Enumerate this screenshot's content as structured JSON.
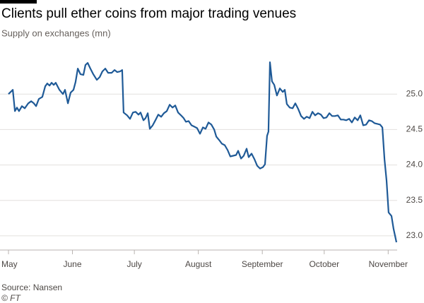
{
  "chart_data": {
    "type": "line",
    "title": "Clients pull ether coins from major trading venues",
    "subtitle": "Supply on exchanges (mn)",
    "source": "Source: Nansen",
    "credit": "© FT",
    "color": "#1f5a97",
    "grid": true,
    "x": [
      0,
      2.1,
      3.1,
      4.1,
      5.1,
      6.5,
      7.9,
      9.6,
      11,
      12.3,
      13.4,
      14.7,
      16.4,
      17.8,
      18.8,
      19.9,
      20.9,
      21.9,
      22.9,
      24.7,
      26.4,
      27.4,
      28.8,
      30.1,
      31.5,
      32.5,
      33.6,
      34.9,
      36.3,
      37.3,
      38.4,
      39.7,
      41.1,
      42.8,
      44.2,
      45.5,
      46.9,
      48.3,
      50,
      51.4,
      52.7,
      54.1,
      55.1,
      55.8,
      57.5,
      58.9,
      60.3,
      61.6,
      63,
      64,
      65.4,
      66.4,
      67.5,
      68.5,
      69.9,
      71.2,
      72.6,
      74,
      75.3,
      76.7,
      78.1,
      79.5,
      80.8,
      82.2,
      83.6,
      84.9,
      86,
      87.3,
      88.7,
      90.1,
      91.4,
      92.8,
      94.2,
      95.5,
      96.9,
      98.3,
      99.7,
      100.7,
      102.1,
      103.4,
      104.8,
      106.2,
      107.5,
      108.9,
      110.3,
      111.3,
      112.7,
      114,
      115.4,
      116.4,
      117.8,
      119.2,
      120.5,
      121.9,
      123.3,
      124.3,
      125.3,
      126,
      126.7,
      127.7,
      128.8,
      130.1,
      131.5,
      132.9,
      133.9,
      134.9,
      136.3,
      137.7,
      139,
      140.4,
      141.8,
      143.2,
      144.5,
      145.9,
      147.3,
      148.6,
      150,
      151.4,
      152.7,
      154.1,
      155.5,
      156.8,
      158.2,
      159.6,
      161,
      162.3,
      163.7,
      165.1,
      166.4,
      167.8,
      169.2,
      170.5,
      171.9,
      173.3,
      174.7,
      176,
      177.4,
      178.8,
      180.1,
      181.2,
      182.2,
      183.2,
      184.2,
      185.6,
      186.6,
      188
    ],
    "values": [
      25.0,
      25.06,
      24.76,
      24.81,
      24.76,
      24.83,
      24.8,
      24.87,
      24.9,
      24.87,
      24.83,
      24.93,
      24.96,
      25.11,
      25.15,
      25.12,
      25.16,
      25.13,
      25.16,
      25.06,
      25.0,
      25.06,
      24.87,
      25.02,
      25.06,
      25.17,
      25.36,
      25.28,
      25.27,
      25.41,
      25.44,
      25.36,
      25.28,
      25.2,
      25.24,
      25.32,
      25.36,
      25.3,
      25.3,
      25.34,
      25.31,
      25.32,
      25.34,
      24.74,
      24.7,
      24.65,
      24.74,
      24.75,
      24.71,
      24.74,
      24.63,
      24.66,
      24.73,
      24.51,
      24.56,
      24.63,
      24.71,
      24.68,
      24.73,
      24.76,
      24.85,
      24.81,
      24.84,
      24.74,
      24.7,
      24.66,
      24.61,
      24.62,
      24.56,
      24.54,
      24.52,
      24.44,
      24.53,
      24.51,
      24.6,
      24.57,
      24.5,
      24.4,
      24.35,
      24.3,
      24.28,
      24.21,
      24.12,
      24.13,
      24.14,
      24.2,
      24.09,
      24.13,
      24.23,
      24.11,
      24.16,
      24.08,
      23.99,
      23.95,
      23.97,
      24.01,
      24.41,
      24.47,
      25.45,
      25.18,
      25.13,
      24.98,
      25.08,
      25.03,
      25.06,
      24.86,
      24.81,
      24.8,
      24.87,
      24.79,
      24.69,
      24.65,
      24.68,
      24.66,
      24.75,
      24.7,
      24.73,
      24.71,
      24.66,
      24.67,
      24.73,
      24.69,
      24.69,
      24.7,
      24.64,
      24.64,
      24.63,
      24.65,
      24.6,
      24.67,
      24.63,
      24.7,
      24.56,
      24.57,
      24.63,
      24.62,
      24.59,
      24.58,
      24.57,
      24.53,
      24.08,
      23.78,
      23.33,
      23.28,
      23.1,
      22.91
    ],
    "xlim": [
      0,
      188
    ],
    "xticks": [
      {
        "value": 0,
        "label": "May"
      },
      {
        "value": 31,
        "label": "June"
      },
      {
        "value": 61,
        "label": "July"
      },
      {
        "value": 92,
        "label": "August"
      },
      {
        "value": 123,
        "label": "September"
      },
      {
        "value": 153,
        "label": "October"
      },
      {
        "value": 184,
        "label": "November"
      }
    ],
    "ylim": [
      22.8,
      25.6
    ],
    "yticks": [
      {
        "value": 23,
        "label": "23.0"
      },
      {
        "value": 23.5,
        "label": "23.5"
      },
      {
        "value": 24,
        "label": "24.0"
      },
      {
        "value": 24.5,
        "label": "24.5"
      },
      {
        "value": 25,
        "label": "25.0"
      }
    ]
  }
}
